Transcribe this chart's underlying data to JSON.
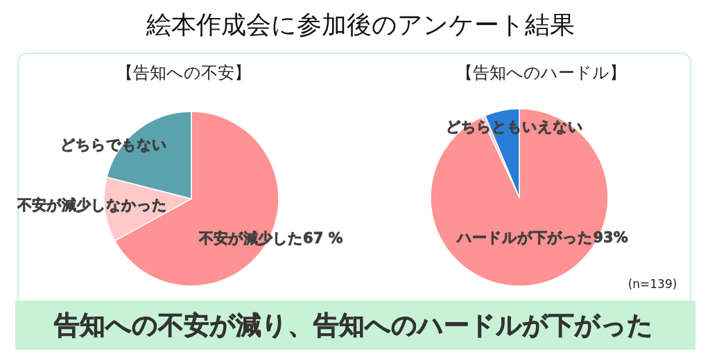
{
  "chart_data": [
    {
      "type": "pie",
      "title": "絵本作成会に参加後のアンケート結果",
      "subtitle": "【告知への不安】",
      "categories": [
        "不安が減少した",
        "不安が減少しなかった",
        "どちらでもない"
      ],
      "values": [
        67,
        12,
        21
      ],
      "value_labels": [
        "67 %",
        null,
        null
      ],
      "colors": [
        "#ff9292",
        "#ffc9c9",
        "#5ba2ad"
      ],
      "annotations": [
        "告知への不安が減り、告知へのハードルが下がった"
      ]
    },
    {
      "type": "pie",
      "subtitle": "【告知へのハードル】",
      "categories": [
        "ハードルが下がった",
        null,
        "どちらともいえない"
      ],
      "values": [
        93,
        0.7,
        6.3
      ],
      "value_labels": [
        "93%",
        null,
        null
      ],
      "colors": [
        "#ff9292",
        "#ffc9c9",
        "#2a7dd6"
      ],
      "annotations": [
        "(n=139)"
      ]
    }
  ]
}
